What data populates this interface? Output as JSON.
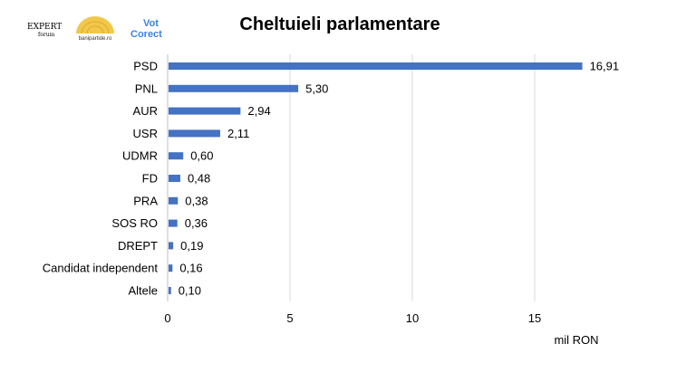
{
  "logos": [
    "Expert Forum",
    "banipartide.ro",
    "Vot Corect"
  ],
  "chart_data": {
    "type": "bar",
    "orientation": "horizontal",
    "title": "Cheltuieli parlamentare",
    "xlabel": "mil RON",
    "ylabel": "",
    "categories": [
      "PSD",
      "PNL",
      "AUR",
      "USR",
      "UDMR",
      "FD",
      "PRA",
      "SOS RO",
      "DREPT",
      "Candidat independent",
      "Altele"
    ],
    "values": [
      16.91,
      5.3,
      2.94,
      2.11,
      0.6,
      0.48,
      0.38,
      0.36,
      0.19,
      0.16,
      0.1
    ],
    "data_labels": [
      "16,91",
      "5,30",
      "2,94",
      "2,11",
      "0,60",
      "0,48",
      "0,38",
      "0,36",
      "0,19",
      "0,16",
      "0,10"
    ],
    "xlim": [
      0,
      18
    ],
    "xticks": [
      0,
      5,
      10,
      15
    ],
    "grid": "vertical",
    "bar_color": "#4472C4",
    "grid_color": "#d9d9d9"
  }
}
